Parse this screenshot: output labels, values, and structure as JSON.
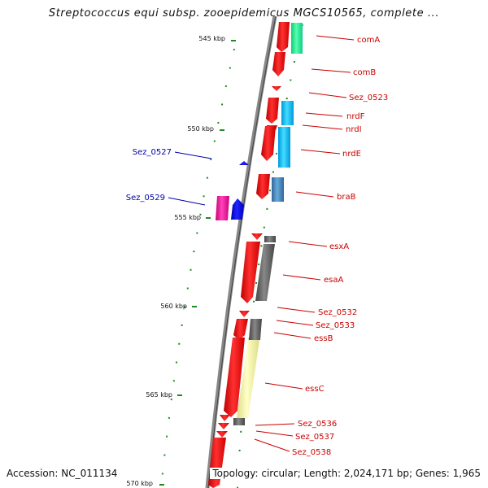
{
  "title": "Streptococcus equi subsp. zooepidemicus MGCS10565, complete ...",
  "accession": "Accession: NC_011134",
  "summary": "Topology: circular; Length: 2,024,171 bp; Genes: 1,965",
  "ticks": [
    "545 kbp",
    "550 kbp",
    "555 kbp",
    "560 kbp",
    "565 kbp",
    "570 kbp"
  ],
  "genes_right": [
    "comA",
    "comB",
    "Sez_0523",
    "nrdF",
    "nrdI",
    "nrdE",
    "braB",
    "esxA",
    "esaA",
    "Sez_0532",
    "Sez_0533",
    "essB",
    "essC",
    "Sez_0536",
    "Sez_0537",
    "Sez_0538"
  ],
  "genes_left": [
    "Sez_0527",
    "Sez_0529"
  ],
  "colors": {
    "cds_forward": "#ee0000",
    "cds_reverse": "#0000dd",
    "label_right": "#cc0000",
    "label_left": "#0000aa",
    "com_product": "#22ee99",
    "nrd_product": "#11bbee",
    "brab_product": "#4488cc",
    "ess_product": "#666666",
    "essc_product": "#eeeea0",
    "pink_product": "#ee1199",
    "tick_mark": "#228822"
  }
}
